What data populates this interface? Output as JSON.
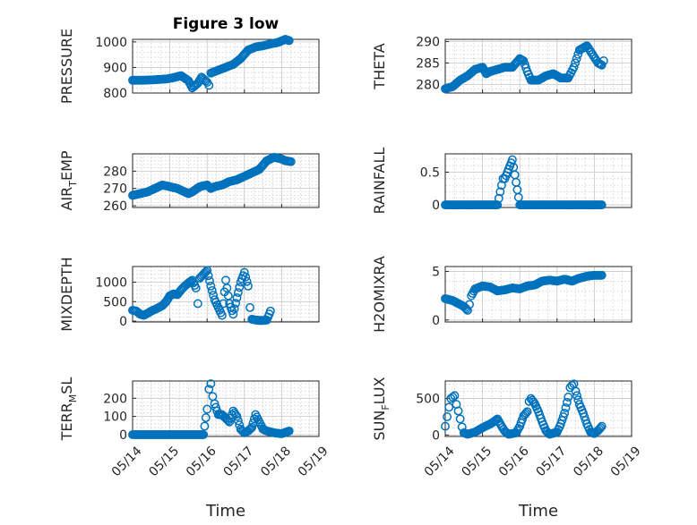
{
  "chart_data": [
    {
      "type": "scatter",
      "title": "Figure 3 low",
      "xlabel": "",
      "ylabel": "PRESSURE",
      "xlim": [
        "05/14",
        "05/19"
      ],
      "ylim": [
        800,
        1010
      ],
      "yticks": [
        800,
        900,
        1000
      ],
      "grid": true,
      "points": [
        [
          14.0,
          850
        ],
        [
          14.3,
          850
        ],
        [
          14.6,
          852
        ],
        [
          14.9,
          855
        ],
        [
          15.1,
          860
        ],
        [
          15.3,
          868
        ],
        [
          15.5,
          848
        ],
        [
          15.6,
          820
        ],
        [
          15.75,
          838
        ],
        [
          15.85,
          862
        ],
        [
          16.0,
          842
        ],
        [
          16.05,
          830
        ],
        [
          16.1,
          878
        ],
        [
          16.4,
          895
        ],
        [
          16.7,
          912
        ],
        [
          16.9,
          935
        ],
        [
          17.1,
          968
        ],
        [
          17.3,
          980
        ],
        [
          17.5,
          985
        ],
        [
          17.7,
          992
        ],
        [
          17.9,
          998
        ],
        [
          18.1,
          1010
        ],
        [
          18.2,
          1005
        ]
      ]
    },
    {
      "type": "scatter",
      "title": "",
      "xlabel": "",
      "ylabel": "THETA",
      "xlim": [
        "05/14",
        "05/19"
      ],
      "ylim": [
        278,
        290.5
      ],
      "yticks": [
        280,
        285,
        290
      ],
      "grid": true,
      "points": [
        [
          14.0,
          279
        ],
        [
          14.2,
          279.5
        ],
        [
          14.4,
          281
        ],
        [
          14.6,
          282
        ],
        [
          14.8,
          283.5
        ],
        [
          15.0,
          284
        ],
        [
          15.1,
          282.5
        ],
        [
          15.2,
          283
        ],
        [
          15.4,
          283.5
        ],
        [
          15.6,
          284
        ],
        [
          15.8,
          284
        ],
        [
          16.0,
          286
        ],
        [
          16.1,
          285.5
        ],
        [
          16.2,
          283
        ],
        [
          16.3,
          281
        ],
        [
          16.5,
          281
        ],
        [
          16.7,
          282
        ],
        [
          16.9,
          282.5
        ],
        [
          17.1,
          281.5
        ],
        [
          17.3,
          281.5
        ],
        [
          17.45,
          284
        ],
        [
          17.6,
          288
        ],
        [
          17.8,
          289
        ],
        [
          17.95,
          287
        ],
        [
          18.1,
          285
        ],
        [
          18.2,
          284.5
        ],
        [
          18.25,
          285.5
        ]
      ]
    },
    {
      "type": "scatter",
      "title": "",
      "xlabel": "",
      "ylabel": "AIR_TEMP",
      "xlim": [
        "05/14",
        "05/19"
      ],
      "ylim": [
        259,
        290
      ],
      "yticks": [
        260,
        270,
        280
      ],
      "grid": true,
      "points": [
        [
          14.0,
          266
        ],
        [
          14.2,
          267
        ],
        [
          14.4,
          268
        ],
        [
          14.6,
          270
        ],
        [
          14.8,
          272
        ],
        [
          15.0,
          271
        ],
        [
          15.2,
          270
        ],
        [
          15.4,
          268
        ],
        [
          15.5,
          267
        ],
        [
          15.6,
          268
        ],
        [
          15.8,
          271
        ],
        [
          16.0,
          272
        ],
        [
          16.1,
          270
        ],
        [
          16.2,
          271
        ],
        [
          16.4,
          272
        ],
        [
          16.6,
          274
        ],
        [
          16.8,
          275
        ],
        [
          17.0,
          277
        ],
        [
          17.2,
          279
        ],
        [
          17.4,
          281
        ],
        [
          17.6,
          286
        ],
        [
          17.8,
          288
        ],
        [
          18.0,
          287
        ],
        [
          18.1,
          286
        ],
        [
          18.25,
          285.5
        ]
      ]
    },
    {
      "type": "scatter",
      "title": "",
      "xlabel": "",
      "ylabel": "RAINFALL",
      "xlim": [
        "05/14",
        "05/19"
      ],
      "ylim": [
        -0.04,
        0.78
      ],
      "yticks": [
        0,
        0.5
      ],
      "grid": true,
      "points": [
        [
          14.0,
          0
        ],
        [
          14.2,
          0
        ],
        [
          14.4,
          0
        ],
        [
          14.6,
          0
        ],
        [
          14.8,
          0
        ],
        [
          15.0,
          0
        ],
        [
          15.2,
          0
        ],
        [
          15.4,
          0
        ],
        [
          15.55,
          0.4
        ],
        [
          15.6,
          0.4
        ],
        [
          15.8,
          0.69
        ],
        [
          16.0,
          0
        ],
        [
          16.2,
          0
        ],
        [
          16.4,
          0
        ],
        [
          16.6,
          0
        ],
        [
          16.8,
          0
        ],
        [
          17.0,
          0
        ],
        [
          17.2,
          0
        ],
        [
          17.4,
          0
        ],
        [
          17.6,
          0
        ],
        [
          17.8,
          0
        ],
        [
          18.0,
          0
        ],
        [
          18.2,
          0
        ]
      ]
    },
    {
      "type": "scatter",
      "title": "",
      "xlabel": "",
      "ylabel": "MIXDEPTH",
      "xlim": [
        "05/14",
        "05/19"
      ],
      "ylim": [
        -20,
        1400
      ],
      "yticks": [
        0,
        500,
        1000
      ],
      "grid": true,
      "points": [
        [
          14.0,
          280
        ],
        [
          14.1,
          260
        ],
        [
          14.2,
          180
        ],
        [
          14.3,
          150
        ],
        [
          14.4,
          200
        ],
        [
          14.5,
          260
        ],
        [
          14.6,
          300
        ],
        [
          14.7,
          350
        ],
        [
          14.8,
          400
        ],
        [
          14.9,
          500
        ],
        [
          15.0,
          650
        ],
        [
          15.1,
          700
        ],
        [
          15.2,
          680
        ],
        [
          15.3,
          800
        ],
        [
          15.4,
          900
        ],
        [
          15.5,
          980
        ],
        [
          15.6,
          1050
        ],
        [
          15.7,
          850
        ],
        [
          15.75,
          450
        ],
        [
          15.8,
          1100
        ],
        [
          15.9,
          1200
        ],
        [
          16.0,
          1300
        ],
        [
          16.1,
          900
        ],
        [
          16.2,
          550
        ],
        [
          16.3,
          350
        ],
        [
          16.4,
          150
        ],
        [
          16.5,
          1050
        ],
        [
          16.6,
          450
        ],
        [
          16.7,
          180
        ],
        [
          16.8,
          600
        ],
        [
          16.9,
          1000
        ],
        [
          17.0,
          1250
        ],
        [
          17.1,
          900
        ],
        [
          17.15,
          350
        ],
        [
          17.2,
          50
        ],
        [
          17.3,
          30
        ],
        [
          17.4,
          20
        ],
        [
          17.5,
          20
        ],
        [
          17.6,
          30
        ],
        [
          17.7,
          260
        ]
      ]
    },
    {
      "type": "scatter",
      "title": "",
      "xlabel": "",
      "ylabel": "H2OMIXRA",
      "xlim": [
        "05/14",
        "05/19"
      ],
      "ylim": [
        -0.2,
        5.5
      ],
      "yticks": [
        0,
        5
      ],
      "grid": true,
      "points": [
        [
          14.0,
          2.2
        ],
        [
          14.1,
          2.1
        ],
        [
          14.2,
          2.0
        ],
        [
          14.3,
          1.8
        ],
        [
          14.4,
          1.6
        ],
        [
          14.5,
          1.4
        ],
        [
          14.6,
          1.0
        ],
        [
          14.65,
          1.6
        ],
        [
          14.7,
          2.5
        ],
        [
          14.8,
          3.2
        ],
        [
          15.0,
          3.5
        ],
        [
          15.2,
          3.4
        ],
        [
          15.4,
          3.0
        ],
        [
          15.6,
          3.1
        ],
        [
          15.8,
          3.3
        ],
        [
          16.0,
          3.2
        ],
        [
          16.2,
          3.5
        ],
        [
          16.4,
          3.6
        ],
        [
          16.6,
          4.0
        ],
        [
          16.8,
          4.1
        ],
        [
          17.0,
          4.0
        ],
        [
          17.2,
          4.2
        ],
        [
          17.4,
          4.0
        ],
        [
          17.6,
          4.3
        ],
        [
          17.8,
          4.5
        ],
        [
          18.0,
          4.6
        ],
        [
          18.2,
          4.6
        ]
      ]
    },
    {
      "type": "scatter",
      "title": "",
      "xlabel": "Time",
      "ylabel": "TERR_MSL",
      "xlim": [
        "05/14",
        "05/19"
      ],
      "ylim": [
        -10,
        295
      ],
      "yticks": [
        0,
        100,
        200
      ],
      "xticks": [
        "05/14",
        "05/15",
        "05/16",
        "05/17",
        "05/18",
        "05/19"
      ],
      "grid": true,
      "points": [
        [
          14.0,
          0
        ],
        [
          14.2,
          0
        ],
        [
          14.4,
          0
        ],
        [
          14.6,
          0
        ],
        [
          14.8,
          0
        ],
        [
          15.0,
          0
        ],
        [
          15.2,
          0
        ],
        [
          15.4,
          0
        ],
        [
          15.6,
          0
        ],
        [
          15.8,
          0
        ],
        [
          15.9,
          0
        ],
        [
          16.0,
          140
        ],
        [
          16.05,
          250
        ],
        [
          16.1,
          280
        ],
        [
          16.15,
          210
        ],
        [
          16.2,
          170
        ],
        [
          16.3,
          110
        ],
        [
          16.4,
          110
        ],
        [
          16.5,
          90
        ],
        [
          16.6,
          70
        ],
        [
          16.7,
          130
        ],
        [
          16.8,
          100
        ],
        [
          16.9,
          30
        ],
        [
          17.0,
          10
        ],
        [
          17.1,
          20
        ],
        [
          17.2,
          40
        ],
        [
          17.3,
          110
        ],
        [
          17.4,
          70
        ],
        [
          17.5,
          30
        ],
        [
          17.6,
          20
        ],
        [
          17.8,
          10
        ],
        [
          18.0,
          5
        ],
        [
          18.2,
          20
        ]
      ]
    },
    {
      "type": "scatter",
      "title": "",
      "xlabel": "Time",
      "ylabel": "SUN_FLUX",
      "xlim": [
        "05/14",
        "05/19"
      ],
      "ylim": [
        -20,
        740
      ],
      "yticks": [
        0,
        500
      ],
      "xticks": [
        "05/14",
        "05/15",
        "05/16",
        "05/17",
        "05/18",
        "05/19"
      ],
      "grid": true,
      "points": [
        [
          14.0,
          120
        ],
        [
          14.05,
          250
        ],
        [
          14.1,
          380
        ],
        [
          14.15,
          500
        ],
        [
          14.2,
          520
        ],
        [
          14.25,
          540
        ],
        [
          14.3,
          420
        ],
        [
          14.35,
          330
        ],
        [
          14.4,
          220
        ],
        [
          14.45,
          110
        ],
        [
          14.5,
          30
        ],
        [
          14.6,
          10
        ],
        [
          14.8,
          40
        ],
        [
          15.0,
          100
        ],
        [
          15.2,
          150
        ],
        [
          15.3,
          180
        ],
        [
          15.4,
          220
        ],
        [
          15.5,
          130
        ],
        [
          15.6,
          50
        ],
        [
          15.7,
          10
        ],
        [
          15.9,
          30
        ],
        [
          16.0,
          120
        ],
        [
          16.1,
          260
        ],
        [
          16.2,
          320
        ],
        [
          16.25,
          460
        ],
        [
          16.3,
          500
        ],
        [
          16.4,
          430
        ],
        [
          16.5,
          320
        ],
        [
          16.6,
          180
        ],
        [
          16.7,
          60
        ],
        [
          16.8,
          10
        ],
        [
          17.0,
          40
        ],
        [
          17.1,
          150
        ],
        [
          17.2,
          300
        ],
        [
          17.3,
          520
        ],
        [
          17.35,
          650
        ],
        [
          17.4,
          680
        ],
        [
          17.45,
          700
        ],
        [
          17.5,
          600
        ],
        [
          17.6,
          420
        ],
        [
          17.7,
          300
        ],
        [
          17.8,
          150
        ],
        [
          17.9,
          40
        ],
        [
          18.0,
          20
        ],
        [
          18.1,
          60
        ],
        [
          18.2,
          120
        ]
      ]
    }
  ]
}
